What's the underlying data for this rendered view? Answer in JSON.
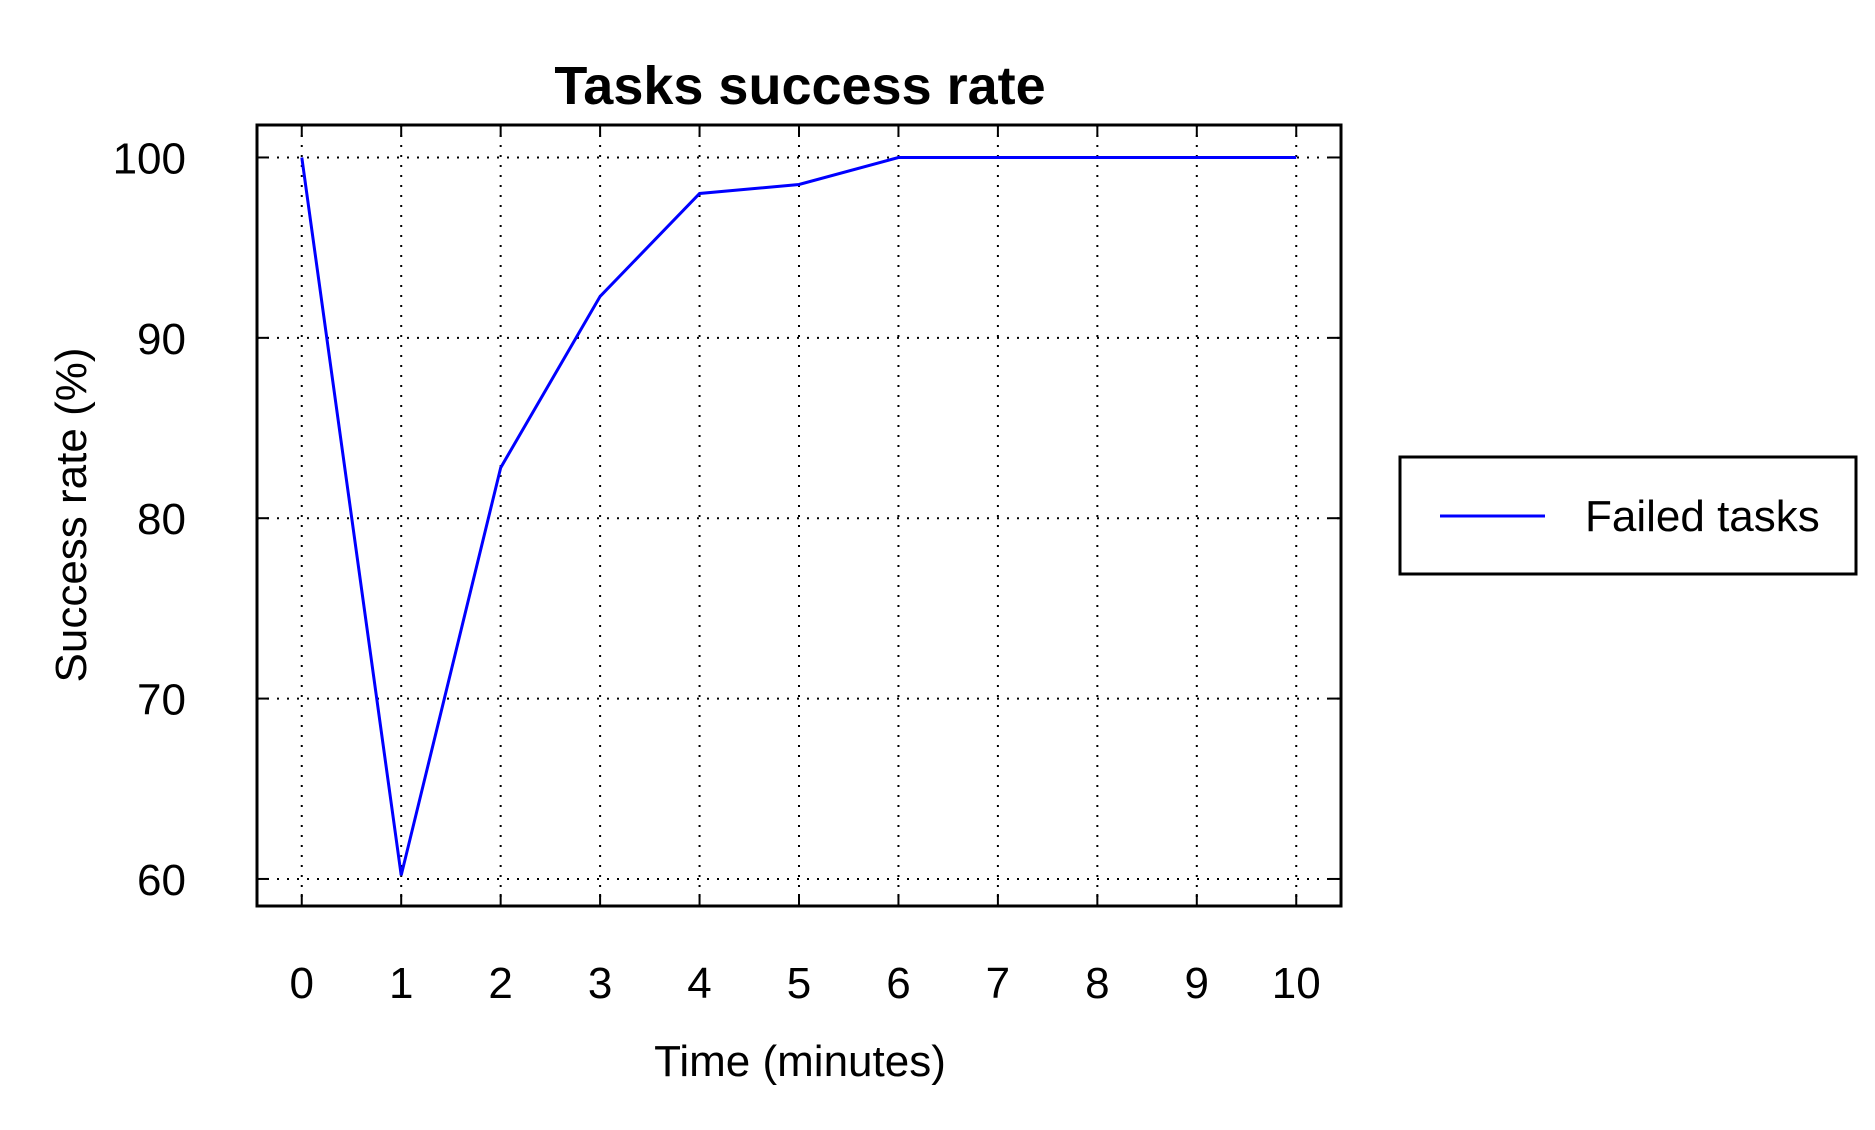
{
  "chart_data": {
    "type": "line",
    "title": "Tasks success rate",
    "xlabel": "Time (minutes)",
    "ylabel": "Success rate (%)",
    "x": [
      0,
      1,
      2,
      3,
      4,
      5,
      6,
      7,
      8,
      9,
      10
    ],
    "xlim": [
      -0.45,
      10.45
    ],
    "ylim": [
      58.5,
      101.8
    ],
    "xticks": [
      "0",
      "1",
      "2",
      "3",
      "4",
      "5",
      "6",
      "7",
      "8",
      "9",
      "10"
    ],
    "yticks": [
      "60",
      "70",
      "80",
      "90",
      "100"
    ],
    "ytick_values": [
      60,
      70,
      80,
      90,
      100
    ],
    "grid": true,
    "grid_style": "dotted",
    "legend_position": "right",
    "series": [
      {
        "name": "Failed tasks",
        "color": "#0000ff",
        "values": [
          100,
          60.2,
          82.8,
          92.3,
          98.0,
          98.5,
          100,
          100,
          100,
          100,
          100
        ]
      }
    ]
  }
}
